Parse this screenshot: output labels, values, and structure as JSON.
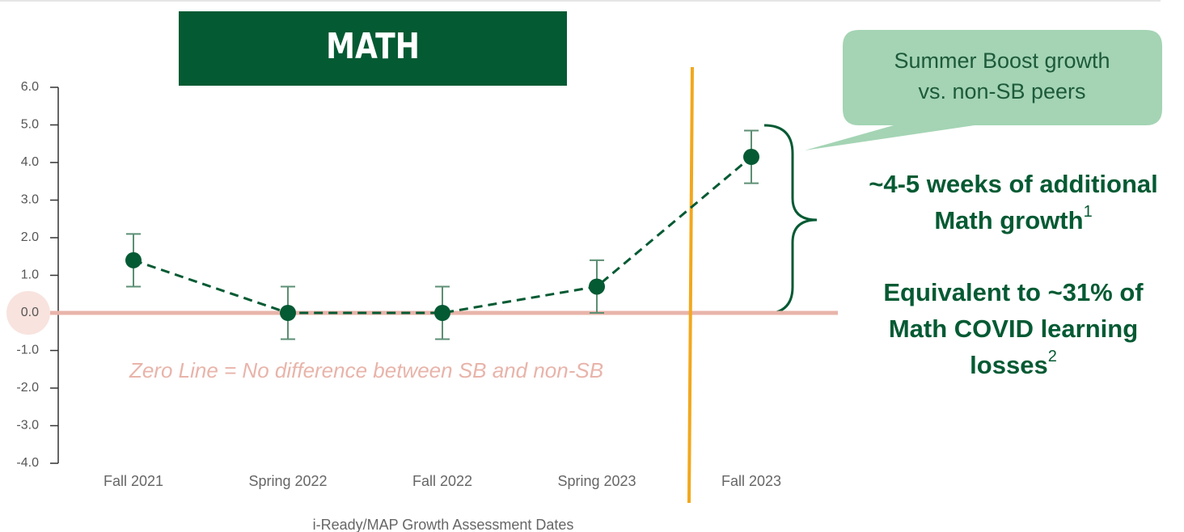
{
  "chart_data": {
    "type": "errorbar_line",
    "title": "MATH",
    "x_label": "i-Ready/MAP Growth Assessment Dates",
    "categories": [
      "Fall 2021",
      "Spring 2022",
      "Fall 2022",
      "Spring 2023",
      "Fall 2023"
    ],
    "values": [
      1.4,
      0.0,
      0.0,
      0.7,
      4.15
    ],
    "errors": [
      0.7,
      0.7,
      0.7,
      0.7,
      0.7
    ],
    "color": "#045a33",
    "error_color": "#5c8f74",
    "ylim": [
      -4,
      6
    ],
    "yticks": [
      {
        "value": 6,
        "label": "6.0"
      },
      {
        "value": 5,
        "label": "5.0"
      },
      {
        "value": 4,
        "label": "4.0"
      },
      {
        "value": 3,
        "label": "3.0"
      },
      {
        "value": 2,
        "label": "2.0"
      },
      {
        "value": 1,
        "label": "1.0"
      },
      {
        "value": 0,
        "label": "0.0"
      },
      {
        "value": -1,
        "label": "-1.0"
      },
      {
        "value": -2,
        "label": "-2.0"
      },
      {
        "value": -3,
        "label": "-3.0"
      },
      {
        "value": -4,
        "label": "-4.0"
      }
    ],
    "zero_line_label": "Zero Line = No difference between SB and non-SB",
    "callout": [
      "Summer Boost growth",
      "vs. non-SB peers"
    ],
    "findings": [
      {
        "lines": [
          "~4-5 weeks of additional",
          "Math growth"
        ],
        "note": "1"
      },
      {
        "lines": [
          "Equivalent to ~31% of",
          "Math COVID learning",
          "losses"
        ],
        "note": "2"
      }
    ]
  }
}
